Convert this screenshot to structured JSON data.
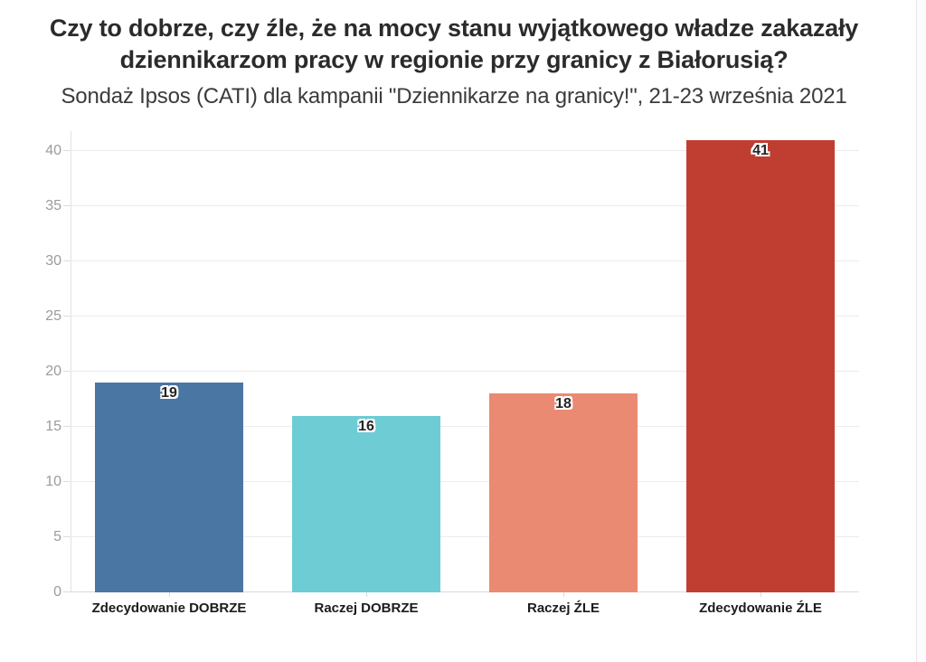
{
  "header": {
    "title_lines": [
      "Czy to dobrze, czy źle, że na mocy stanu wyjątkowego władze zakazały",
      "dziennikarzom pracy w regionie przy granicy z Białorusią?"
    ],
    "subtitle": "Sondaż Ipsos (CATI) dla kampanii \"Dziennikarze na granicy!\", 21-23 września 2021"
  },
  "chart_data": {
    "type": "bar",
    "title": "Czy to dobrze, czy źle, że na mocy stanu wyjątkowego władze zakazały dziennikarzom pracy w regionie przy granicy z Białorusią?",
    "subtitle": "Sondaż Ipsos (CATI) dla kampanii \"Dziennikarze na granicy!\", 21-23 września 2021",
    "categories": [
      "Zdecydowanie DOBRZE",
      "Raczej DOBRZE",
      "Raczej ŹLE",
      "Zdecydowanie ŹLE"
    ],
    "values": [
      19,
      16,
      18,
      41
    ],
    "bar_colors": [
      "#4a76a3",
      "#6eccd4",
      "#ea8a73",
      "#c03e31"
    ],
    "value_label_position": "inside-top",
    "xlabel": "",
    "ylabel": "",
    "ylim": [
      0,
      41.8
    ],
    "yticks": [
      0,
      5,
      10,
      15,
      20,
      25,
      30,
      35,
      40
    ],
    "grid": "horizontal",
    "legend": "none",
    "colors": {
      "grid_line": "#ececec",
      "axis_line": "#d9d9d9",
      "tick_label": "#9b9b9b",
      "title_text": "#2b2b2b",
      "subtitle_text": "#3b3b3b",
      "category_label_text": "#1c1c1c",
      "value_label_text": "#252525",
      "background": "#ffffff"
    }
  }
}
